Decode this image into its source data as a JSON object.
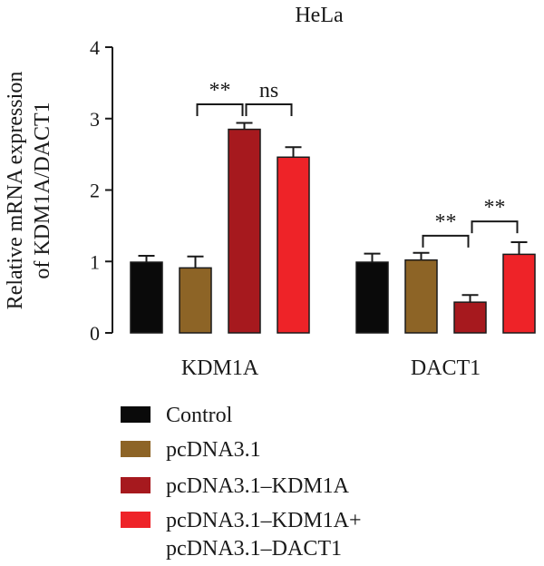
{
  "chart_data": {
    "type": "bar",
    "title": "HeLa",
    "ylabel_lines": [
      "Relative mRNA expression",
      "of KDM1A/DACT1"
    ],
    "xlabel": "",
    "ylim": [
      0,
      4
    ],
    "yticks": [
      0,
      1,
      2,
      3,
      4
    ],
    "grid": false,
    "legend_position": "bottom-left",
    "categories": [
      "KDM1A",
      "DACT1"
    ],
    "series": [
      {
        "name": "Control",
        "color": "#0a0a0a",
        "values": [
          0.99,
          0.99
        ],
        "errors": [
          0.09,
          0.12
        ]
      },
      {
        "name": "pcDNA3.1",
        "color": "#8d6426",
        "values": [
          0.91,
          1.02
        ],
        "errors": [
          0.16,
          0.1
        ]
      },
      {
        "name": "pcDNA3.1–KDM1A",
        "color": "#a6191e",
        "values": [
          2.85,
          0.43
        ],
        "errors": [
          0.09,
          0.1
        ]
      },
      {
        "name": "pcDNA3.1–KDM1A+ pcDNA3.1–DACT1",
        "color": "#ee2328",
        "values": [
          2.46,
          1.1
        ],
        "errors": [
          0.14,
          0.17
        ]
      }
    ],
    "legend_labels": [
      [
        "Control"
      ],
      [
        "pcDNA3.1"
      ],
      [
        "pcDNA3.1–KDM1A"
      ],
      [
        "pcDNA3.1–KDM1A+",
        "pcDNA3.1–DACT1"
      ]
    ],
    "annotations": [
      {
        "text": "**",
        "category": 0,
        "from_series": 1,
        "to_series": 2,
        "level": 3.2
      },
      {
        "text": "ns",
        "category": 0,
        "from_series": 2,
        "to_series": 3,
        "level": 3.2
      },
      {
        "text": "**",
        "category": 1,
        "from_series": 1,
        "to_series": 2,
        "level": 1.36
      },
      {
        "text": "**",
        "category": 1,
        "from_series": 2,
        "to_series": 3,
        "level": 1.56
      }
    ]
  }
}
